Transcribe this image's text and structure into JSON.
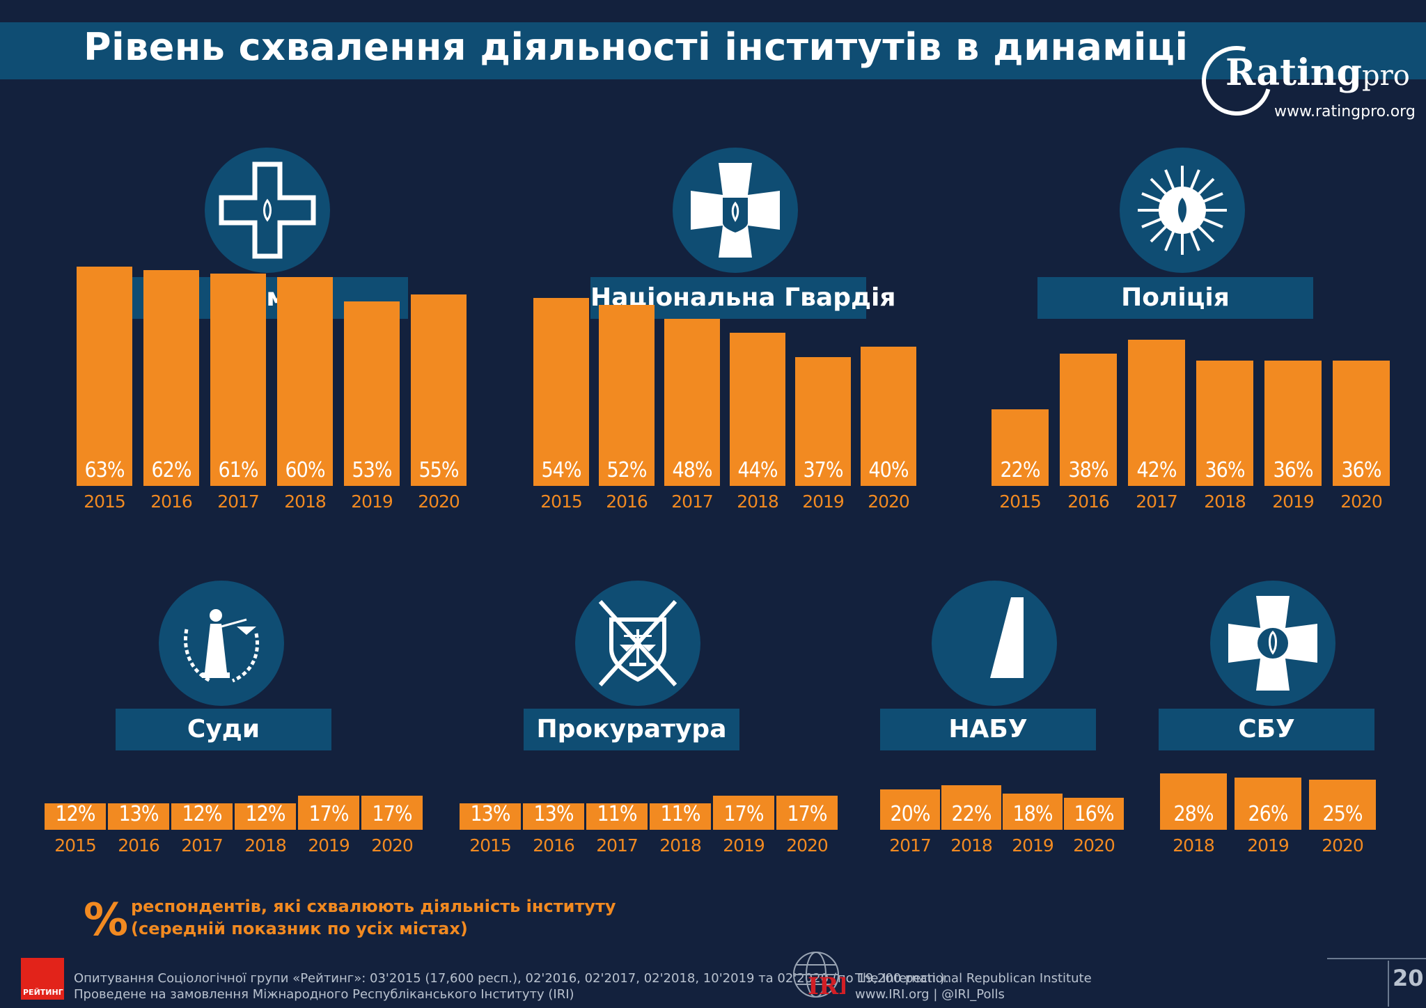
{
  "title": "Рівень схвалення діяльності інститутів в динаміці",
  "logo": {
    "brand": "Rating",
    "brand_suffix": "pro",
    "url": "www.ratingpro.org"
  },
  "accent_color": "#f28a21",
  "panel_color": "#0f4d73",
  "background_color": "#13213d",
  "chart_data": [
    {
      "type": "bar",
      "title": "Армія",
      "icon": "army-cross-icon",
      "categories": [
        "2015",
        "2016",
        "2017",
        "2018",
        "2019",
        "2020"
      ],
      "values": [
        63,
        62,
        61,
        60,
        53,
        55
      ],
      "labels": [
        "63%",
        "62%",
        "61%",
        "60%",
        "53%",
        "55%"
      ]
    },
    {
      "type": "bar",
      "title": "Національна Гвардія",
      "icon": "national-guard-cross-icon",
      "categories": [
        "2015",
        "2016",
        "2017",
        "2018",
        "2019",
        "2020"
      ],
      "values": [
        54,
        52,
        48,
        44,
        37,
        40
      ],
      "labels": [
        "54%",
        "52%",
        "48%",
        "44%",
        "37%",
        "40%"
      ]
    },
    {
      "type": "bar",
      "title": "Поліція",
      "icon": "police-star-icon",
      "categories": [
        "2015",
        "2016",
        "2017",
        "2018",
        "2019",
        "2020"
      ],
      "values": [
        22,
        38,
        42,
        36,
        36,
        36
      ],
      "labels": [
        "22%",
        "38%",
        "42%",
        "36%",
        "36%",
        "36%"
      ]
    },
    {
      "type": "bar",
      "title": "Суди",
      "icon": "justice-statue-icon",
      "categories": [
        "2015",
        "2016",
        "2017",
        "2018",
        "2019",
        "2020"
      ],
      "values": [
        12,
        13,
        12,
        12,
        17,
        17
      ],
      "labels": [
        "12%",
        "13%",
        "12%",
        "12%",
        "17%",
        "17%"
      ]
    },
    {
      "type": "bar",
      "title": "Прокуратура",
      "icon": "prosecutor-shield-icon",
      "categories": [
        "2015",
        "2016",
        "2017",
        "2018",
        "2019",
        "2020"
      ],
      "values": [
        13,
        13,
        11,
        11,
        17,
        17
      ],
      "labels": [
        "13%",
        "13%",
        "11%",
        "11%",
        "17%",
        "17%"
      ]
    },
    {
      "type": "bar",
      "title": "НАБУ",
      "icon": "nabu-emblem-icon",
      "categories": [
        "2017",
        "2018",
        "2019",
        "2020"
      ],
      "values": [
        20,
        22,
        18,
        16
      ],
      "labels": [
        "20%",
        "22%",
        "18%",
        "16%"
      ]
    },
    {
      "type": "bar",
      "title": "СБУ",
      "icon": "sbu-cross-icon",
      "categories": [
        "2018",
        "2019",
        "2020"
      ],
      "values": [
        28,
        26,
        25
      ],
      "labels": [
        "28%",
        "26%",
        "25%"
      ]
    }
  ],
  "legend": {
    "symbol": "%",
    "line1": "респондентів, які схвалюють діяльність інституту",
    "line2": "(середній показник по усіх містах)"
  },
  "footer": {
    "rating_logo": "РЕЙТИНГ",
    "note_line1": "Опитування Соціологічної групи «Рейтинг»: 03'2015 (17,600 респ.), 02'2016, 02'2017, 02'2018, 10'2019 та 02'2020 (по 19,200 респ.).",
    "note_line2": "Проведене на замовлення Міжнародного Республіканського Інституту (IRI)",
    "iri_mark": "IRI",
    "iri_line1": "The International Republican Institute",
    "iri_line2": "www.IRI.org | @IRI_Polls",
    "page_number": "20"
  }
}
